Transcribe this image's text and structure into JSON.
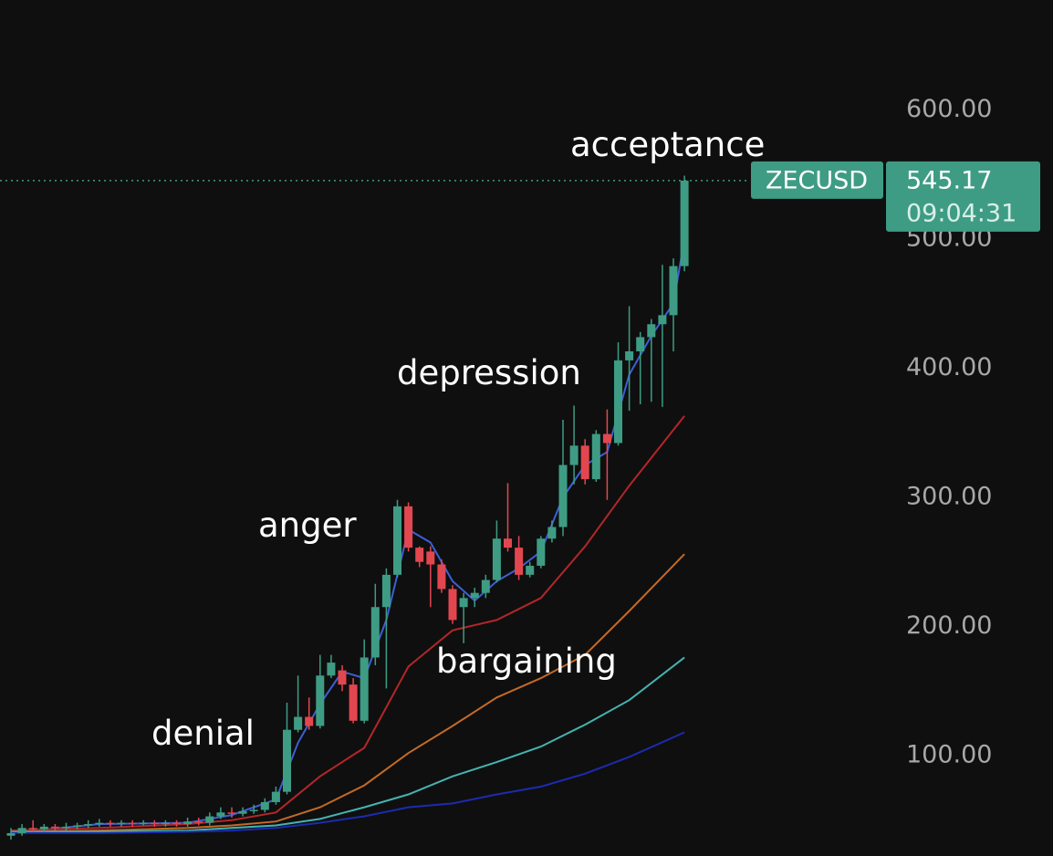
{
  "chart_data": {
    "type": "candlestick",
    "symbol": "ZECUSD",
    "countdown": "09:04:31",
    "annotations": [
      "acceptance",
      "depression",
      "anger",
      "bargaining",
      "denial"
    ],
    "ylim": [
      22.3,
      685
    ],
    "yticks": [
      {
        "value": 100,
        "label": "100.00"
      },
      {
        "value": 200,
        "label": "200.00"
      },
      {
        "value": 300,
        "label": "300.00"
      },
      {
        "value": 400,
        "label": "400.00"
      },
      {
        "value": 500,
        "label": "500.00"
      },
      {
        "value": 600,
        "label": "600.00"
      }
    ],
    "up_color": "#3f9c84",
    "down_color": "#e2474f",
    "open": [
      38,
      40,
      44,
      43,
      45,
      44,
      45,
      46,
      47,
      48,
      47,
      48,
      47,
      48,
      47,
      48,
      47,
      49,
      48,
      53,
      56,
      55,
      57,
      58,
      64,
      72,
      120,
      130,
      123,
      162,
      166,
      155,
      127,
      176,
      215,
      240,
      293,
      261,
      258,
      248,
      229,
      215,
      222,
      226,
      236,
      268,
      261,
      240,
      247,
      268,
      277,
      325,
      340,
      314,
      349,
      342,
      406,
      413,
      424,
      434,
      441,
      479
    ],
    "close": [
      40,
      44,
      43,
      45,
      44,
      45,
      46,
      47,
      48,
      47,
      48,
      47,
      48,
      47,
      48,
      47,
      49,
      48,
      53,
      56,
      55,
      57,
      58,
      64,
      72,
      120,
      130,
      123,
      162,
      172,
      155,
      127,
      176,
      215,
      240,
      293,
      261,
      250,
      248,
      229,
      205,
      222,
      226,
      236,
      268,
      261,
      240,
      247,
      268,
      277,
      325,
      340,
      314,
      349,
      342,
      406,
      413,
      424,
      434,
      441,
      479,
      545.17
    ],
    "high": [
      44,
      47,
      50,
      47,
      47,
      48,
      48,
      50,
      51,
      50,
      50,
      50,
      50,
      50,
      50,
      50,
      52,
      52,
      56,
      60,
      60,
      60,
      62,
      67,
      76,
      141,
      162,
      145,
      178,
      178,
      170,
      160,
      190,
      233,
      245,
      298,
      296,
      262,
      262,
      252,
      232,
      226,
      230,
      240,
      282,
      311,
      270,
      250,
      270,
      282,
      360,
      371,
      345,
      352,
      368,
      420,
      448,
      428,
      438,
      480,
      485,
      549
    ],
    "low": [
      35,
      38,
      41,
      41,
      42,
      42,
      43,
      44,
      45,
      45,
      45,
      45,
      46,
      45,
      45,
      45,
      45,
      46,
      46,
      51,
      52,
      53,
      55,
      56,
      62,
      70,
      118,
      120,
      121,
      160,
      150,
      125,
      125,
      170,
      152,
      238,
      258,
      246,
      215,
      226,
      202,
      187,
      215,
      222,
      234,
      258,
      236,
      238,
      245,
      265,
      270,
      310,
      310,
      312,
      298,
      340,
      367,
      372,
      374,
      370,
      413,
      475
    ],
    "lines": [
      {
        "color": "#3c5fd6",
        "x": [
          0,
          8,
          16,
          20,
          24,
          26,
          28,
          30,
          32,
          34,
          36,
          38,
          40,
          42,
          44,
          46,
          48,
          50,
          52,
          54,
          56,
          58,
          60,
          61
        ],
        "values": [
          40,
          47,
          48,
          54,
          66,
          110,
          140,
          165,
          160,
          205,
          275,
          265,
          235,
          220,
          235,
          245,
          258,
          300,
          325,
          335,
          395,
          425,
          450,
          500
        ]
      },
      {
        "color": "#b3262a",
        "x": [
          0,
          8,
          16,
          20,
          24,
          28,
          32,
          36,
          40,
          44,
          48,
          52,
          56,
          61
        ],
        "values": [
          42,
          44,
          47,
          50,
          56,
          84,
          106,
          169,
          197,
          205,
          222,
          262,
          309,
          363
        ]
      },
      {
        "color": "#c46a26",
        "x": [
          0,
          8,
          16,
          20,
          24,
          28,
          32,
          36,
          40,
          44,
          48,
          52,
          56,
          61
        ],
        "values": [
          41,
          42,
          44,
          46,
          49,
          60,
          77,
          102,
          123,
          145,
          160,
          178,
          212,
          256
        ]
      },
      {
        "color": "#44b4b0",
        "x": [
          0,
          8,
          16,
          20,
          24,
          28,
          32,
          36,
          40,
          44,
          48,
          52,
          56,
          61
        ],
        "values": [
          41,
          41,
          42,
          44,
          46,
          51,
          60,
          70,
          84,
          95,
          107,
          124,
          143,
          176
        ]
      },
      {
        "color": "#1c2bb0",
        "x": [
          0,
          8,
          16,
          20,
          24,
          28,
          32,
          36,
          40,
          44,
          48,
          52,
          56,
          61
        ],
        "values": [
          40,
          40,
          41,
          42,
          44,
          48,
          53,
          60,
          63,
          70,
          76,
          86,
          99,
          118
        ]
      }
    ]
  }
}
